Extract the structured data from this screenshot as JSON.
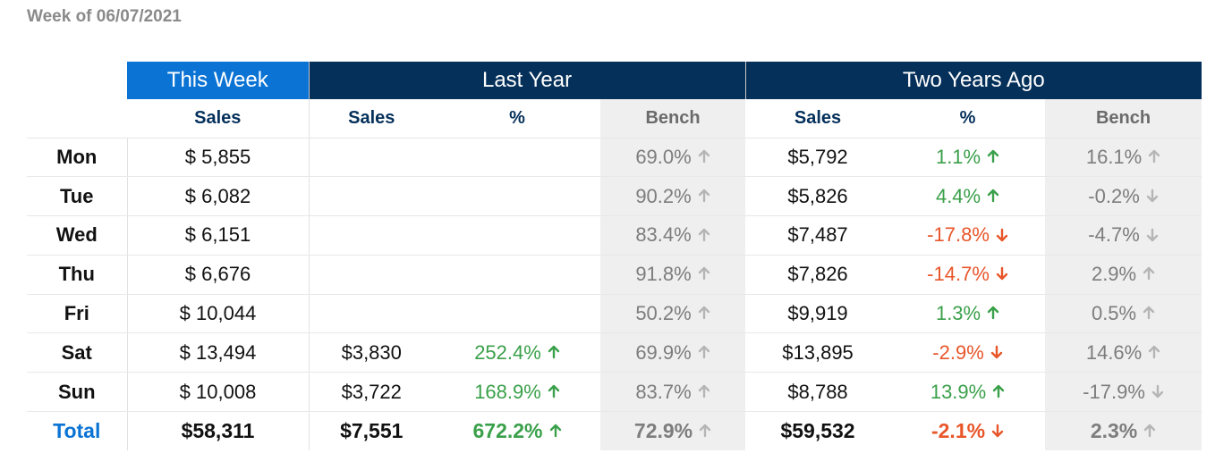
{
  "title": "Week of 06/07/2021",
  "groups": {
    "this_week": "This Week",
    "last_year": "Last Year",
    "two_years": "Two Years Ago"
  },
  "subheaders": {
    "sales": "Sales",
    "pct": "%",
    "bench": "Bench"
  },
  "colors": {
    "green": "#3aa04a",
    "red": "#e8562a",
    "gray": "#b5b5b5",
    "navy": "#05305a",
    "blue": "#0a73d4"
  },
  "rows": [
    {
      "day": "Mon",
      "this_sales": "$ 5,855",
      "ly_sales": "",
      "ly_pct": "",
      "ly_pct_dir": "",
      "ly_bench": "69.0%",
      "ly_bench_dir": "up",
      "ty_sales": "$5,792",
      "ty_pct": "1.1%",
      "ty_pct_dir": "up",
      "ty_bench": "16.1%",
      "ty_bench_dir": "up"
    },
    {
      "day": "Tue",
      "this_sales": "$ 6,082",
      "ly_sales": "",
      "ly_pct": "",
      "ly_pct_dir": "",
      "ly_bench": "90.2%",
      "ly_bench_dir": "up",
      "ty_sales": "$5,826",
      "ty_pct": "4.4%",
      "ty_pct_dir": "up",
      "ty_bench": "-0.2%",
      "ty_bench_dir": "down"
    },
    {
      "day": "Wed",
      "this_sales": "$ 6,151",
      "ly_sales": "",
      "ly_pct": "",
      "ly_pct_dir": "",
      "ly_bench": "83.4%",
      "ly_bench_dir": "up",
      "ty_sales": "$7,487",
      "ty_pct": "-17.8%",
      "ty_pct_dir": "down",
      "ty_bench": "-4.7%",
      "ty_bench_dir": "down"
    },
    {
      "day": "Thu",
      "this_sales": "$ 6,676",
      "ly_sales": "",
      "ly_pct": "",
      "ly_pct_dir": "",
      "ly_bench": "91.8%",
      "ly_bench_dir": "up",
      "ty_sales": "$7,826",
      "ty_pct": "-14.7%",
      "ty_pct_dir": "down",
      "ty_bench": "2.9%",
      "ty_bench_dir": "up"
    },
    {
      "day": "Fri",
      "this_sales": "$ 10,044",
      "ly_sales": "",
      "ly_pct": "",
      "ly_pct_dir": "",
      "ly_bench": "50.2%",
      "ly_bench_dir": "up",
      "ty_sales": "$9,919",
      "ty_pct": "1.3%",
      "ty_pct_dir": "up",
      "ty_bench": "0.5%",
      "ty_bench_dir": "up"
    },
    {
      "day": "Sat",
      "this_sales": "$ 13,494",
      "ly_sales": "$3,830",
      "ly_pct": "252.4%",
      "ly_pct_dir": "up",
      "ly_bench": "69.9%",
      "ly_bench_dir": "up",
      "ty_sales": "$13,895",
      "ty_pct": "-2.9%",
      "ty_pct_dir": "down",
      "ty_bench": "14.6%",
      "ty_bench_dir": "up"
    },
    {
      "day": "Sun",
      "this_sales": "$ 10,008",
      "ly_sales": "$3,722",
      "ly_pct": "168.9%",
      "ly_pct_dir": "up",
      "ly_bench": "83.7%",
      "ly_bench_dir": "up",
      "ty_sales": "$8,788",
      "ty_pct": "13.9%",
      "ty_pct_dir": "up",
      "ty_bench": "-17.9%",
      "ty_bench_dir": "down"
    }
  ],
  "total": {
    "label": "Total",
    "this_sales": "$58,311",
    "ly_sales": "$7,551",
    "ly_pct": "672.2%",
    "ly_pct_dir": "up",
    "ly_bench": "72.9%",
    "ly_bench_dir": "up",
    "ty_sales": "$59,532",
    "ty_pct": "-2.1%",
    "ty_pct_dir": "down",
    "ty_bench": "2.3%",
    "ty_bench_dir": "up"
  }
}
